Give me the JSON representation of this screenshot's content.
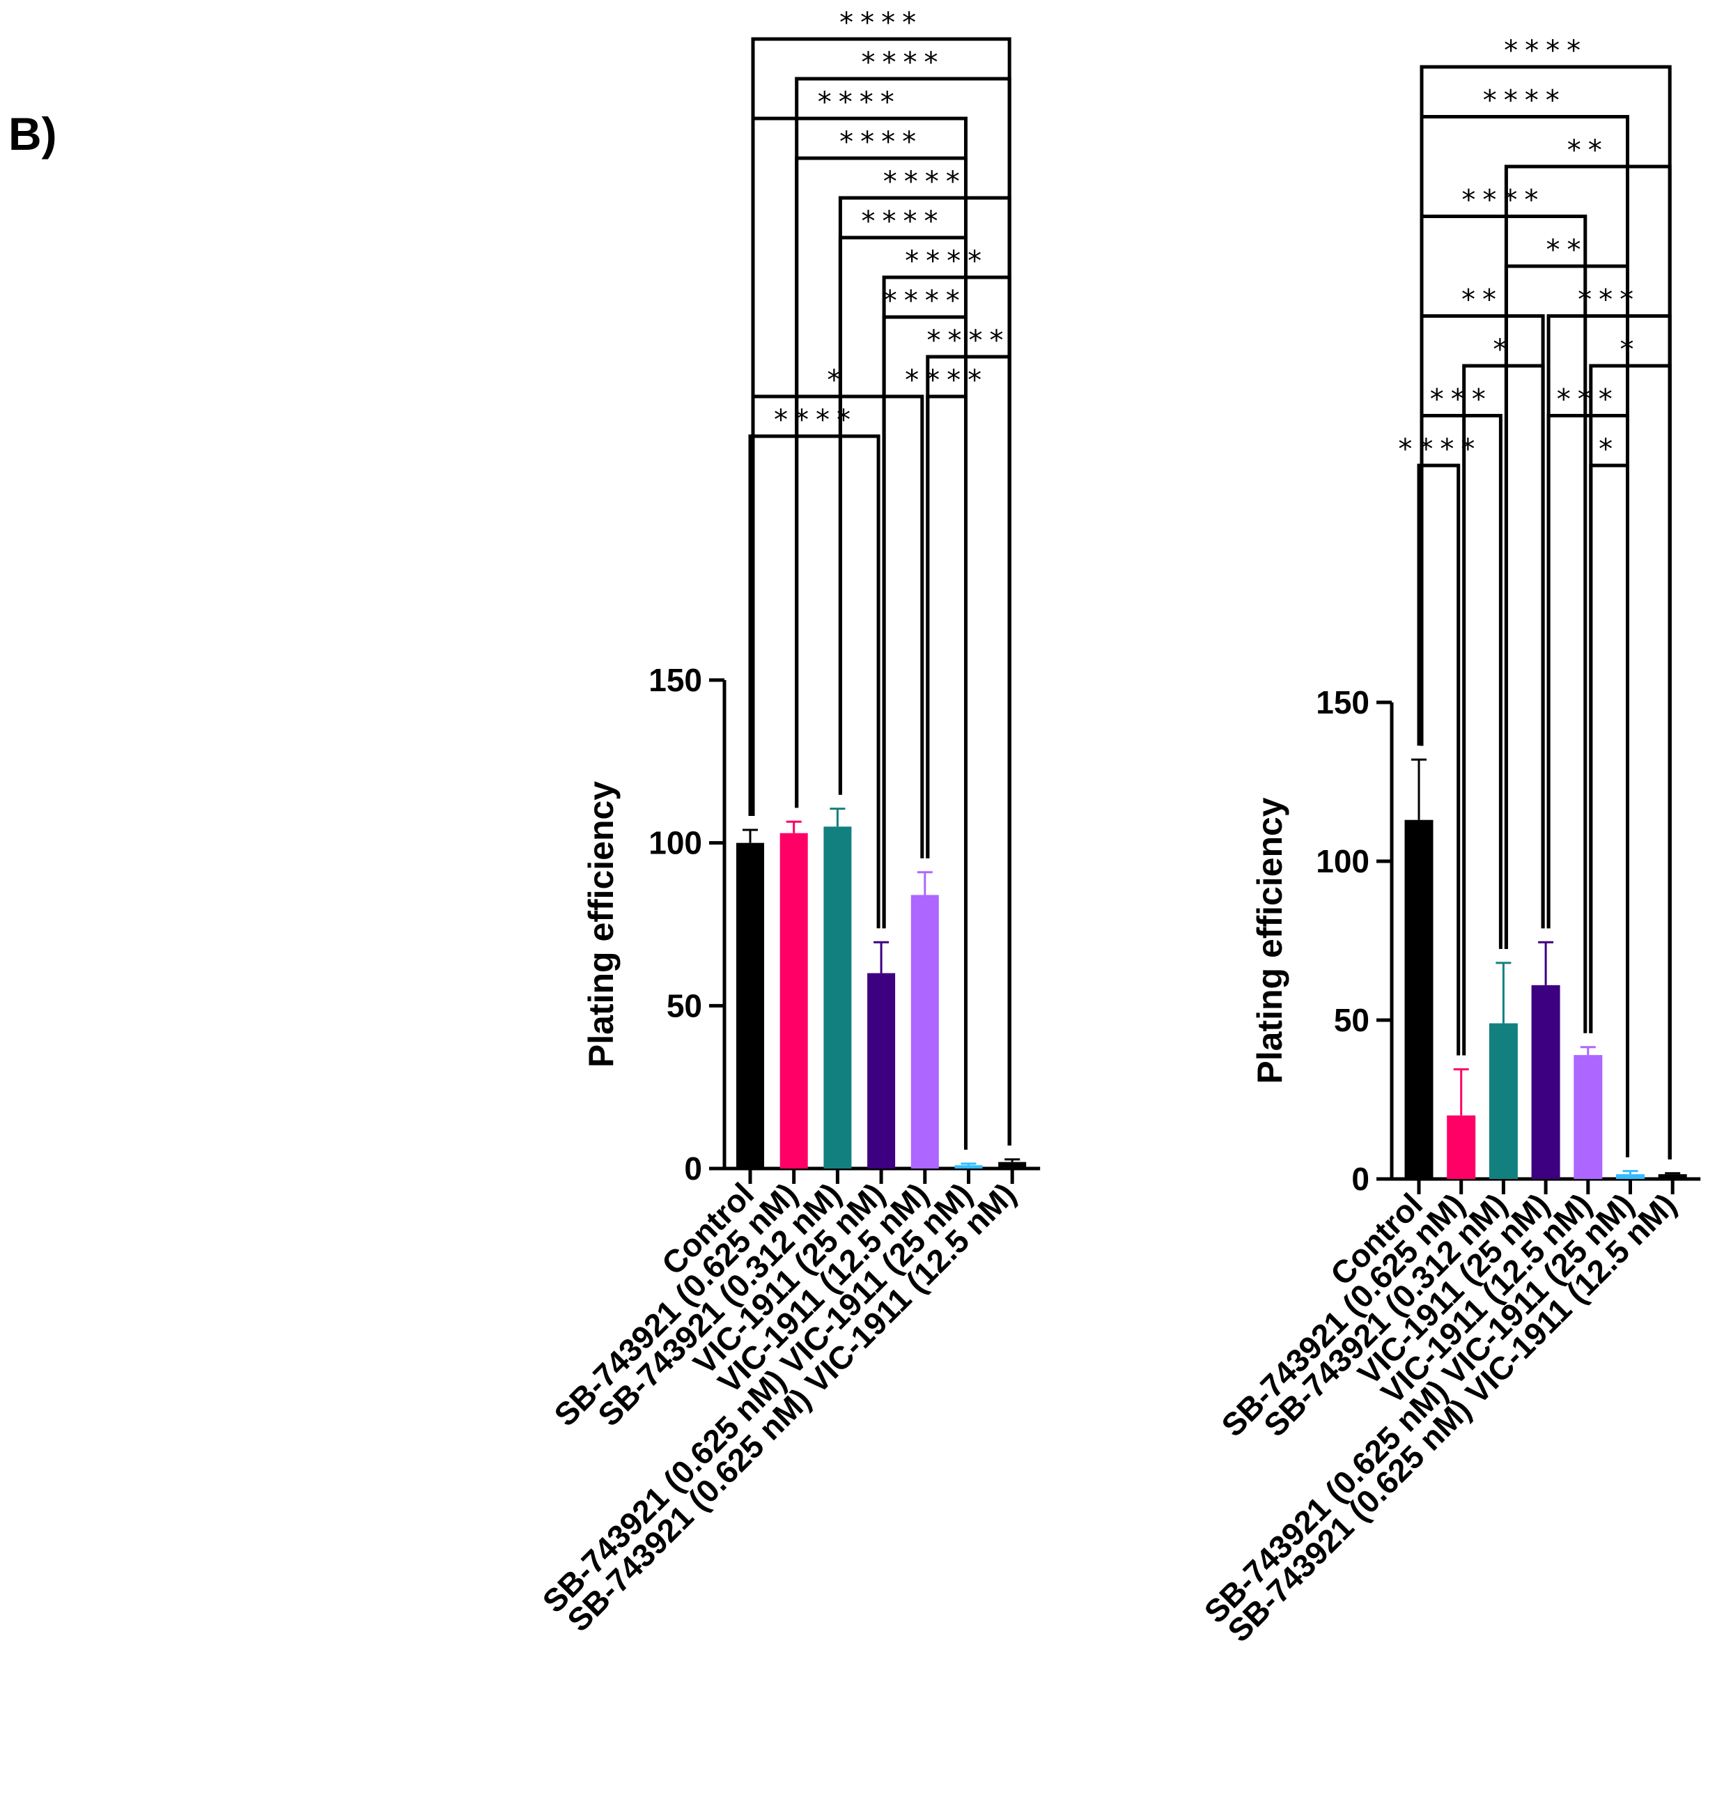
{
  "panel_label": "B)",
  "chart_data": [
    {
      "type": "bar",
      "ylabel": "Plating efficiency",
      "xlabel": "",
      "ylim": [
        0,
        150
      ],
      "yticks": [
        0,
        50,
        100,
        150
      ],
      "categories": [
        "Control",
        "SB-743921 (0.625 nM)",
        "SB-743921 (0.312 nM)",
        "VIC-1911 (25 nM)",
        "VIC-1911 (12.5 nM)",
        "SB-743921 (0.625 nM) VIC-1911 (25 nM)",
        "SB-743921 (0.625 nM) VIC-1911 (12.5 nM)"
      ],
      "values": [
        100,
        103,
        105,
        60,
        84,
        1,
        2
      ],
      "errors": [
        4,
        3.5,
        5.5,
        9.5,
        7,
        0.5,
        0.8
      ],
      "colors": [
        "#000000",
        "#ff0066",
        "#138080",
        "#3d0080",
        "#ad66ff",
        "#33bbff",
        "#000000"
      ],
      "significance": [
        {
          "from": 0,
          "to": 3,
          "label": "****"
        },
        {
          "from": 4,
          "to": 5,
          "label": "****"
        },
        {
          "from": 0,
          "to": 4,
          "label": "*"
        },
        {
          "from": 4,
          "to": 6,
          "label": "****"
        },
        {
          "from": 3,
          "to": 5,
          "label": "****"
        },
        {
          "from": 3,
          "to": 6,
          "label": "****"
        },
        {
          "from": 2,
          "to": 5,
          "label": "****"
        },
        {
          "from": 2,
          "to": 6,
          "label": "****"
        },
        {
          "from": 1,
          "to": 5,
          "label": "****"
        },
        {
          "from": 0,
          "to": 5,
          "label": "****"
        },
        {
          "from": 1,
          "to": 6,
          "label": "****"
        },
        {
          "from": 0,
          "to": 6,
          "label": "****"
        }
      ]
    },
    {
      "type": "bar",
      "ylabel": "Plating efficiency",
      "xlabel": "",
      "ylim": [
        0,
        150
      ],
      "yticks": [
        0,
        50,
        100,
        150
      ],
      "categories": [
        "Control",
        "SB-743921 (0.625 nM)",
        "SB-743921 (0.312 nM)",
        "VIC-1911 (25 nM)",
        "VIC-1911 (12.5 nM)",
        "SB-743921 (0.625 nM) VIC-1911 (25 nM)",
        "SB-743921 (0.625 nM) VIC-1911 (12.5 nM)"
      ],
      "values": [
        113,
        20,
        49,
        61,
        39,
        1.5,
        1.5
      ],
      "errors": [
        19,
        14.5,
        19,
        13.5,
        2.5,
        1,
        0.3
      ],
      "colors": [
        "#000000",
        "#ff0066",
        "#138080",
        "#3d0080",
        "#ad66ff",
        "#33bbff",
        "#000000"
      ],
      "significance": [
        {
          "from": 0,
          "to": 1,
          "label": "****"
        },
        {
          "from": 4,
          "to": 5,
          "label": "*"
        },
        {
          "from": 0,
          "to": 2,
          "label": "***"
        },
        {
          "from": 3,
          "to": 5,
          "label": "***"
        },
        {
          "from": 1,
          "to": 3,
          "label": "*"
        },
        {
          "from": 4,
          "to": 6,
          "label": "*"
        },
        {
          "from": 0,
          "to": 3,
          "label": "**"
        },
        {
          "from": 3,
          "to": 6,
          "label": "***"
        },
        {
          "from": 2,
          "to": 5,
          "label": "**"
        },
        {
          "from": 0,
          "to": 4,
          "label": "****"
        },
        {
          "from": 2,
          "to": 6,
          "label": "**"
        },
        {
          "from": 0,
          "to": 5,
          "label": "****"
        },
        {
          "from": 0,
          "to": 6,
          "label": "****"
        }
      ]
    }
  ]
}
